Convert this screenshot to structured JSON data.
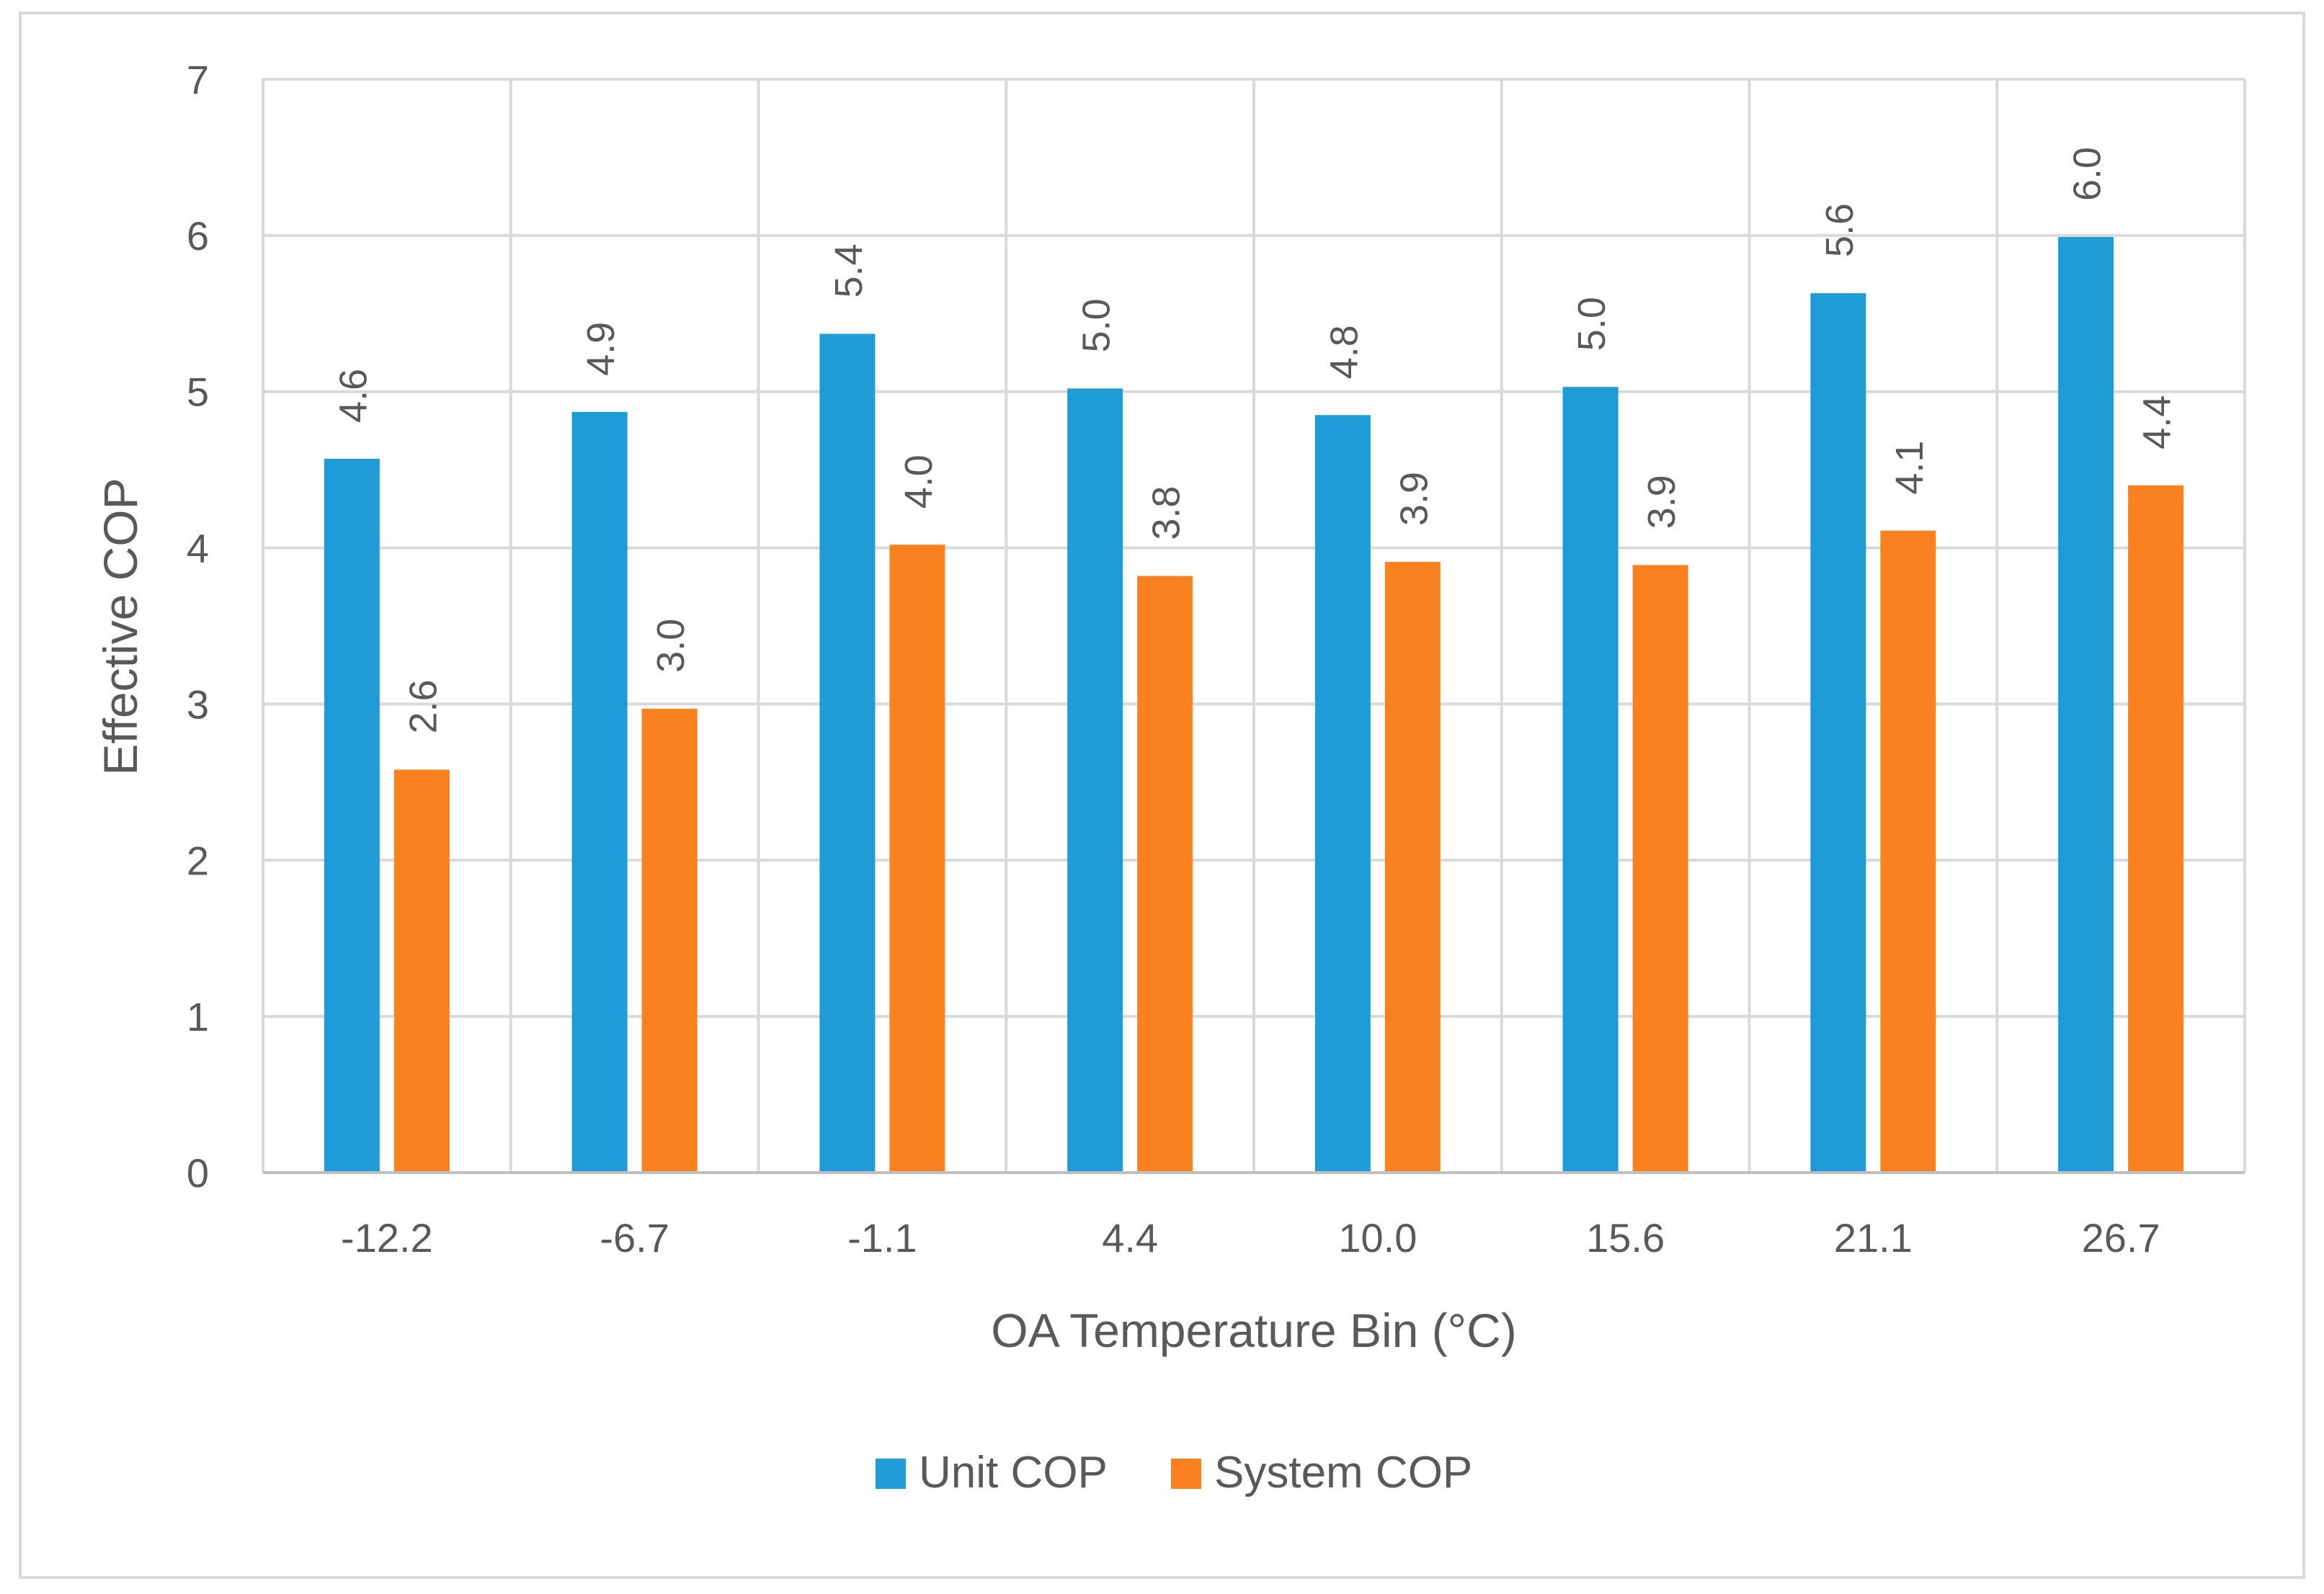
{
  "chart_data": {
    "type": "bar",
    "title": "",
    "xlabel": "OA Temperature Bin (°C)",
    "ylabel": "Effective COP",
    "categories": [
      "-12.2",
      "-6.7",
      "-1.1",
      "4.4",
      "10.0",
      "15.6",
      "21.1",
      "26.7"
    ],
    "series": [
      {
        "name": "Unit COP",
        "color": "#1f9bd7",
        "values": [
          4.57,
          4.87,
          5.37,
          5.02,
          4.85,
          5.03,
          5.63,
          5.99
        ],
        "labels": [
          "4.6",
          "4.9",
          "5.4",
          "5.0",
          "4.8",
          "5.0",
          "5.6",
          "6.0"
        ]
      },
      {
        "name": "System COP",
        "color": "#f98120",
        "values": [
          2.58,
          2.97,
          4.02,
          3.82,
          3.91,
          3.89,
          4.11,
          4.4
        ],
        "labels": [
          "2.6",
          "3.0",
          "4.0",
          "3.8",
          "3.9",
          "3.9",
          "4.1",
          "4.4"
        ]
      }
    ],
    "ylim": [
      0,
      7
    ],
    "yticks": [
      "0",
      "1",
      "2",
      "3",
      "4",
      "5",
      "6",
      "7"
    ],
    "grid": true,
    "legend": "bottom",
    "data_labels": "rotated"
  }
}
